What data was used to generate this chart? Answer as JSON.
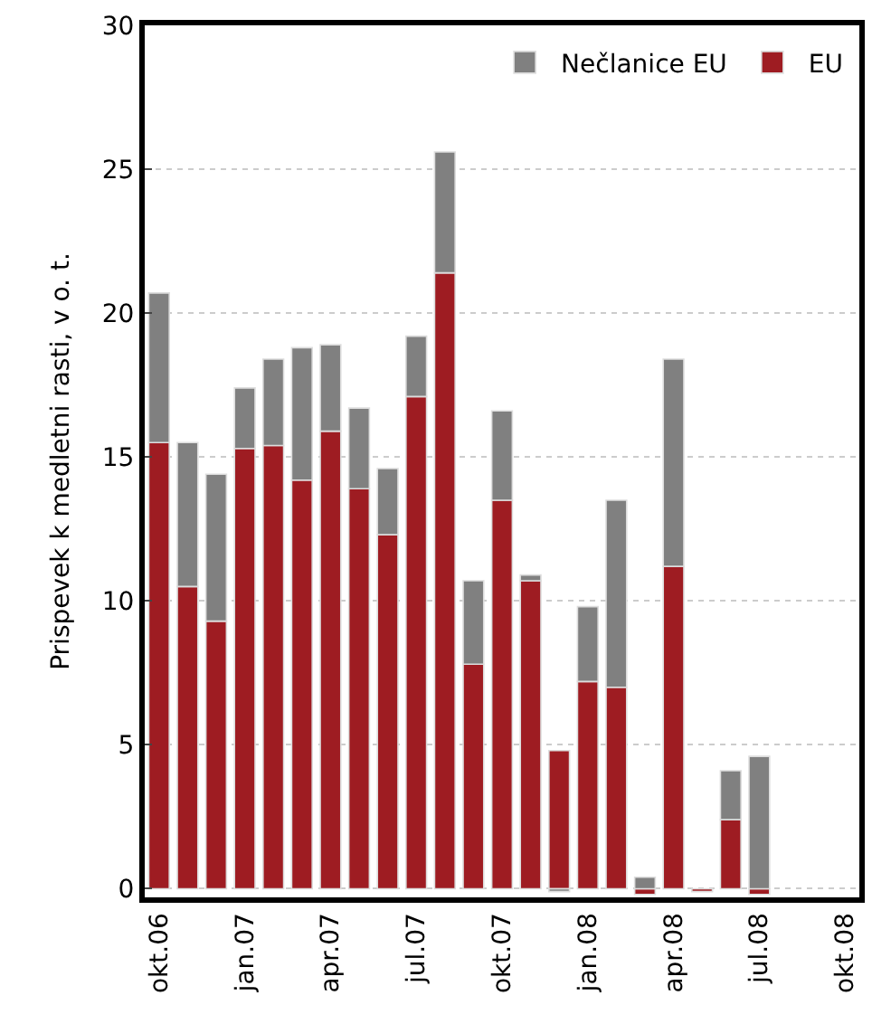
{
  "chart_data": {
    "type": "bar",
    "stacked": true,
    "ylabel": "Prispevek k medletni rasti, v o. t.",
    "categories": [
      "okt.06",
      null,
      null,
      "jan.07",
      null,
      null,
      "apr.07",
      null,
      null,
      "jul.07",
      null,
      null,
      "okt.07",
      null,
      null,
      "jan.08",
      null,
      null,
      "apr.08",
      null,
      null,
      "jul.08",
      null,
      null,
      "okt.08"
    ],
    "series": [
      {
        "name": "EU",
        "color": "#9e1c22",
        "values": [
          15.5,
          10.5,
          9.3,
          15.3,
          15.4,
          14.2,
          15.9,
          13.9,
          12.3,
          17.1,
          21.4,
          7.8,
          13.5,
          10.7,
          4.8,
          7.2,
          7.0,
          -0.2,
          11.2,
          -0.1,
          2.4,
          -0.2,
          null,
          null,
          null
        ]
      },
      {
        "name": "Nečlanice EU",
        "color": "#808080",
        "values": [
          5.2,
          5.0,
          5.1,
          2.1,
          3.0,
          4.6,
          3.0,
          2.8,
          2.3,
          2.1,
          4.2,
          2.9,
          3.1,
          0.2,
          -0.1,
          2.6,
          6.5,
          0.4,
          7.2,
          null,
          1.7,
          4.6,
          null,
          null,
          null
        ]
      }
    ],
    "ylim": [
      -0.3,
      30
    ],
    "yticks": [
      0,
      5,
      10,
      15,
      20,
      25,
      30
    ],
    "grid": "y",
    "legend": "top right"
  }
}
